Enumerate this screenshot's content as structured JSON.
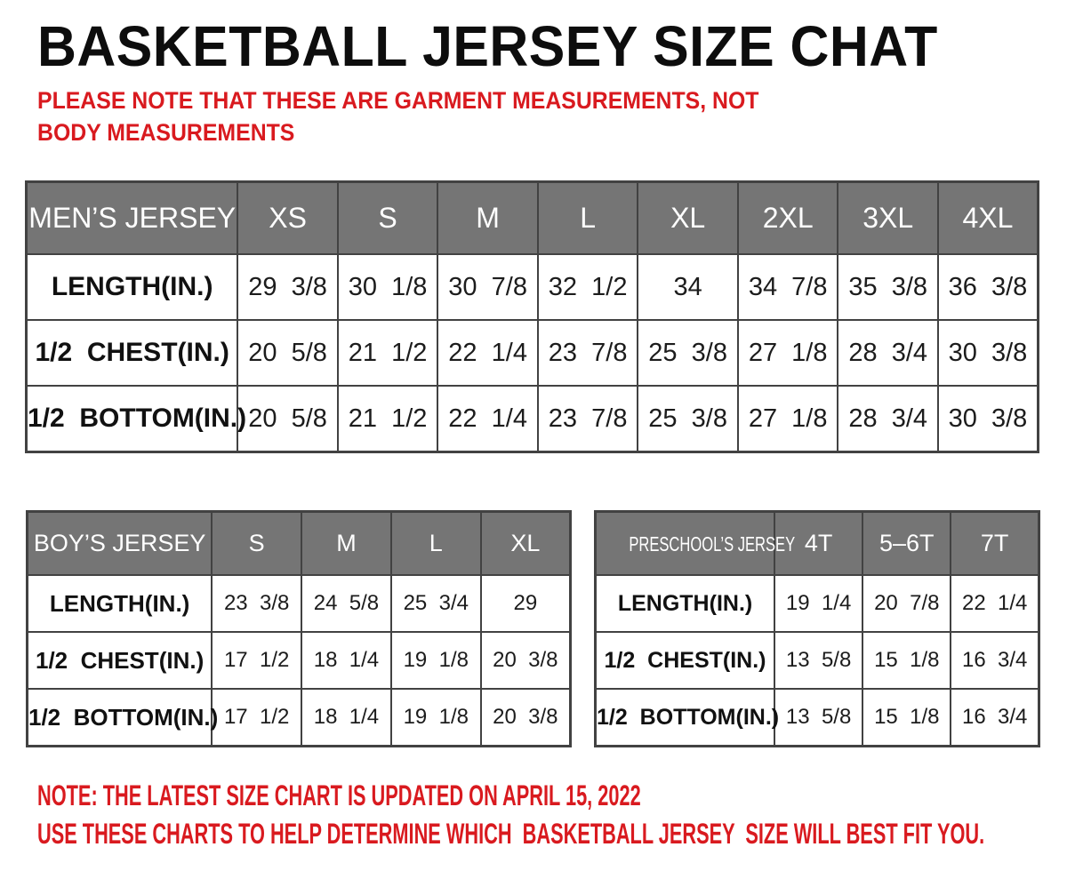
{
  "page": {
    "title": "BASKETBALL JERSEY SIZE CHAT",
    "subtitle": "PLEASE NOTE THAT THESE ARE GARMENT MEASUREMENTS, NOT BODY MEASUREMENTS",
    "footnotes": [
      "NOTE: THE LATEST SIZE CHART IS UPDATED ON APRIL 15, 2022",
      "USE THESE CHARTS TO HELP DETERMINE WHICH  BASKETBALL JERSEY  SIZE WILL BEST FIT YOU."
    ]
  },
  "colors": {
    "note_red": "#d91a1f",
    "header_gray": "#757575",
    "border_gray": "#424242",
    "header_text": "#ffffff",
    "body_text": "#1c1c1c"
  },
  "tables": {
    "mens": {
      "name": "MEN’S JERSEY",
      "sizes": [
        "XS",
        "S",
        "M",
        "L",
        "XL",
        "2XL",
        "3XL",
        "4XL"
      ],
      "rows": [
        {
          "label": "LENGTH(IN.)",
          "values": [
            "29  3/8",
            "30  1/8",
            "30  7/8",
            "32  1/2",
            "34",
            "34  7/8",
            "35  3/8",
            "36  3/8"
          ]
        },
        {
          "label": "1/2  CHEST(IN.)",
          "values": [
            "20  5/8",
            "21  1/2",
            "22  1/4",
            "23  7/8",
            "25  3/8",
            "27  1/8",
            "28  3/4",
            "30  3/8"
          ]
        },
        {
          "label": "1/2  BOTTOM(IN.)",
          "values": [
            "20  5/8",
            "21  1/2",
            "22  1/4",
            "23  7/8",
            "25  3/8",
            "27  1/8",
            "28  3/4",
            "30  3/8"
          ]
        }
      ]
    },
    "boys": {
      "name": "BOY’S JERSEY",
      "sizes": [
        "S",
        "M",
        "L",
        "XL"
      ],
      "rows": [
        {
          "label": "LENGTH(IN.)",
          "values": [
            "23  3/8",
            "24  5/8",
            "25  3/4",
            "29"
          ]
        },
        {
          "label": "1/2  CHEST(IN.)",
          "values": [
            "17  1/2",
            "18  1/4",
            "19  1/8",
            "20  3/8"
          ]
        },
        {
          "label": "1/2  BOTTOM(IN.)",
          "values": [
            "17  1/2",
            "18  1/4",
            "19  1/8",
            "20  3/8"
          ]
        }
      ]
    },
    "preschool": {
      "name": "PRESCHOOL’S  JERSEY",
      "sizes": [
        "4T",
        "5–6T",
        "7T"
      ],
      "rows": [
        {
          "label": "LENGTH(IN.)",
          "values": [
            "19  1/4",
            "20  7/8",
            "22  1/4"
          ]
        },
        {
          "label": "1/2  CHEST(IN.)",
          "values": [
            "13  5/8",
            "15  1/8",
            "16  3/4"
          ]
        },
        {
          "label": "1/2  BOTTOM(IN.)",
          "values": [
            "13  5/8",
            "15  1/8",
            "16  3/4"
          ]
        }
      ]
    }
  }
}
